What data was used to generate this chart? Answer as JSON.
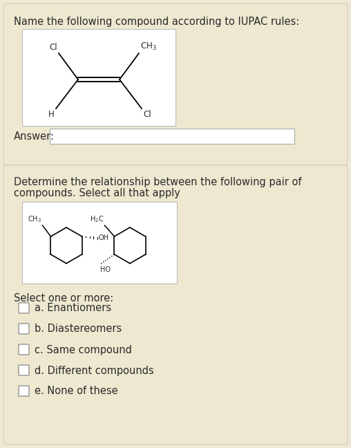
{
  "bg_color": "#ede9d5",
  "section_bg": "#ede9d5",
  "mol_box_bg": "#ffffff",
  "text_color": "#2a2a2a",
  "title1": "Name the following compound according to IUPAC rules:",
  "title2_line1": "Determine the relationship between the following pair of",
  "title2_line2": "compounds. Select all that apply",
  "answer_label": "Answer:",
  "select_label": "Select one or more:",
  "options": [
    "a. Enantiomers",
    "b. Diastereomers",
    "c. Same compound",
    "d. Different compounds",
    "e. None of these"
  ],
  "font_size_title": 10.5,
  "font_size_label": 10.5,
  "font_size_option": 10.5,
  "font_size_mol": 8.5
}
